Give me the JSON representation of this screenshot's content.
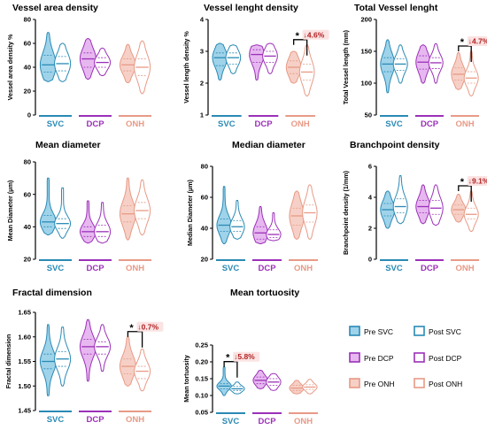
{
  "chart_data": [
    {
      "type": "violin",
      "title": "Vessel area density",
      "ylabel": "Vessel area density %",
      "ylim": [
        0,
        80
      ],
      "yticks": [
        "0",
        "20",
        "40",
        "60",
        "80"
      ],
      "groups": [
        "SVC",
        "DCP",
        "ONH"
      ],
      "series": [
        {
          "name": "Pre SVC",
          "group": "SVC",
          "min": 28,
          "q1": 36,
          "median": 42,
          "q3": 50,
          "max": 69
        },
        {
          "name": "Post SVC",
          "group": "SVC",
          "min": 28,
          "q1": 37,
          "median": 43,
          "q3": 49,
          "max": 60
        },
        {
          "name": "Pre DCP",
          "group": "DCP",
          "min": 30,
          "q1": 40,
          "median": 47,
          "q3": 52,
          "max": 64
        },
        {
          "name": "Post DCP",
          "group": "DCP",
          "min": 33,
          "q1": 40,
          "median": 44,
          "q3": 48,
          "max": 56
        },
        {
          "name": "Pre ONH",
          "group": "ONH",
          "min": 27,
          "q1": 37,
          "median": 42,
          "q3": 47,
          "max": 59
        },
        {
          "name": "Post ONH",
          "group": "ONH",
          "min": 18,
          "q1": 33,
          "median": 40,
          "q3": 47,
          "max": 62
        }
      ],
      "annotation": null
    },
    {
      "type": "violin",
      "title": "Vessel lenght density",
      "ylabel": "Vessel length density %",
      "ylim": [
        1,
        4
      ],
      "yticks": [
        "1",
        "2",
        "3",
        "4"
      ],
      "groups": [
        "SVC",
        "DCP",
        "ONH"
      ],
      "series": [
        {
          "name": "Pre SVC",
          "group": "SVC",
          "min": 2.1,
          "q1": 2.55,
          "median": 2.8,
          "q3": 2.95,
          "max": 3.25
        },
        {
          "name": "Post SVC",
          "group": "SVC",
          "min": 2.3,
          "q1": 2.6,
          "median": 2.8,
          "q3": 2.95,
          "max": 3.2
        },
        {
          "name": "Pre DCP",
          "group": "DCP",
          "min": 2.1,
          "q1": 2.65,
          "median": 2.9,
          "q3": 3.05,
          "max": 3.2
        },
        {
          "name": "Post DCP",
          "group": "DCP",
          "min": 2.3,
          "q1": 2.65,
          "median": 2.85,
          "q3": 3.0,
          "max": 3.25
        },
        {
          "name": "Pre ONH",
          "group": "ONH",
          "min": 2.0,
          "q1": 2.3,
          "median": 2.5,
          "q3": 2.7,
          "max": 3.0
        },
        {
          "name": "Post ONH",
          "group": "ONH",
          "min": 1.6,
          "q1": 2.1,
          "median": 2.35,
          "q3": 2.6,
          "max": 3.2
        }
      ],
      "annotation": {
        "star": "*",
        "text": "↓4.6%",
        "pair": "ONH"
      }
    },
    {
      "type": "violin",
      "title": "Total Vessel lenght",
      "ylabel": "Total Vessel length (mm)",
      "ylim": [
        50,
        200
      ],
      "yticks": [
        "50",
        "100",
        "150",
        "200"
      ],
      "groups": [
        "SVC",
        "DCP",
        "ONH"
      ],
      "series": [
        {
          "name": "Pre SVC",
          "group": "SVC",
          "min": 85,
          "q1": 118,
          "median": 130,
          "q3": 140,
          "max": 168
        },
        {
          "name": "Post SVC",
          "group": "SVC",
          "min": 100,
          "q1": 120,
          "median": 130,
          "q3": 138,
          "max": 160
        },
        {
          "name": "Pre DCP",
          "group": "DCP",
          "min": 100,
          "q1": 122,
          "median": 133,
          "q3": 143,
          "max": 160
        },
        {
          "name": "Post DCP",
          "group": "DCP",
          "min": 100,
          "q1": 123,
          "median": 132,
          "q3": 140,
          "max": 162
        },
        {
          "name": "Pre ONH",
          "group": "ONH",
          "min": 90,
          "q1": 105,
          "median": 114,
          "q3": 124,
          "max": 148
        },
        {
          "name": "Post ONH",
          "group": "ONH",
          "min": 80,
          "q1": 100,
          "median": 108,
          "q3": 118,
          "max": 150
        }
      ],
      "annotation": {
        "star": "*",
        "text": "↓4.7%",
        "pair": "ONH"
      }
    },
    {
      "type": "violin",
      "title": "Mean diameter",
      "ylabel": "Mean Diameter (μm)",
      "ylim": [
        20,
        80
      ],
      "yticks": [
        "20",
        "40",
        "60",
        "80"
      ],
      "groups": [
        "SVC",
        "DCP",
        "ONH"
      ],
      "series": [
        {
          "name": "Pre SVC",
          "group": "SVC",
          "min": 35,
          "q1": 40,
          "median": 43,
          "q3": 47,
          "max": 70
        },
        {
          "name": "Post SVC",
          "group": "SVC",
          "min": 33,
          "q1": 39,
          "median": 42,
          "q3": 45,
          "max": 64
        },
        {
          "name": "Pre DCP",
          "group": "DCP",
          "min": 30,
          "q1": 34,
          "median": 37,
          "q3": 40,
          "max": 56
        },
        {
          "name": "Post DCP",
          "group": "DCP",
          "min": 30,
          "q1": 34,
          "median": 37,
          "q3": 41,
          "max": 55
        },
        {
          "name": "Pre ONH",
          "group": "ONH",
          "min": 32,
          "q1": 43,
          "median": 48,
          "q3": 53,
          "max": 70
        },
        {
          "name": "Post ONH",
          "group": "ONH",
          "min": 35,
          "q1": 45,
          "median": 50,
          "q3": 55,
          "max": 69
        }
      ],
      "annotation": null
    },
    {
      "type": "violin",
      "title": "Median diameter",
      "ylabel": "Median Diameter (μm)",
      "ylim": [
        20,
        80
      ],
      "yticks": [
        "20",
        "40",
        "60",
        "80"
      ],
      "groups": [
        "SVC",
        "DCP",
        "ONH"
      ],
      "series": [
        {
          "name": "Pre SVC",
          "group": "SVC",
          "min": 30,
          "q1": 38,
          "median": 42,
          "q3": 46,
          "max": 67
        },
        {
          "name": "Post SVC",
          "group": "SVC",
          "min": 33,
          "q1": 38,
          "median": 41,
          "q3": 45,
          "max": 58
        },
        {
          "name": "Pre DCP",
          "group": "DCP",
          "min": 30,
          "q1": 33,
          "median": 37,
          "q3": 41,
          "max": 54
        },
        {
          "name": "Post DCP",
          "group": "DCP",
          "min": 32,
          "q1": 34,
          "median": 36,
          "q3": 39,
          "max": 50
        },
        {
          "name": "Pre ONH",
          "group": "ONH",
          "min": 33,
          "q1": 42,
          "median": 48,
          "q3": 53,
          "max": 64
        },
        {
          "name": "Post ONH",
          "group": "ONH",
          "min": 33,
          "q1": 44,
          "median": 50,
          "q3": 55,
          "max": 68
        }
      ],
      "annotation": null
    },
    {
      "type": "violin",
      "title": "Branchpoint density",
      "ylabel": "Branchpoint density (1/mm)",
      "ylim": [
        0,
        6
      ],
      "yticks": [
        "0",
        "2",
        "4",
        "6"
      ],
      "groups": [
        "SVC",
        "DCP",
        "ONH"
      ],
      "series": [
        {
          "name": "Pre SVC",
          "group": "SVC",
          "min": 2.0,
          "q1": 2.8,
          "median": 3.2,
          "q3": 3.6,
          "max": 4.4
        },
        {
          "name": "Post SVC",
          "group": "SVC",
          "min": 2.3,
          "q1": 3.0,
          "median": 3.4,
          "q3": 3.9,
          "max": 5.4
        },
        {
          "name": "Pre DCP",
          "group": "DCP",
          "min": 2.3,
          "q1": 3.0,
          "median": 3.4,
          "q3": 3.8,
          "max": 4.8
        },
        {
          "name": "Post DCP",
          "group": "DCP",
          "min": 2.2,
          "q1": 2.9,
          "median": 3.3,
          "q3": 3.8,
          "max": 4.8
        },
        {
          "name": "Pre ONH",
          "group": "ONH",
          "min": 2.4,
          "q1": 2.9,
          "median": 3.2,
          "q3": 3.5,
          "max": 4.2
        },
        {
          "name": "Post ONH",
          "group": "ONH",
          "min": 1.8,
          "q1": 2.6,
          "median": 2.9,
          "q3": 3.3,
          "max": 4.4
        }
      ],
      "annotation": {
        "star": "*",
        "text": "↓9.1%",
        "pair": "ONH"
      }
    },
    {
      "type": "violin",
      "title": "Fractal dimension",
      "ylabel": "Fractal dimension",
      "ylim": [
        1.45,
        1.65
      ],
      "yticks": [
        "1.45",
        "1.50",
        "1.55",
        "1.60",
        "1.65"
      ],
      "groups": [
        "SVC",
        "DCP",
        "ONH"
      ],
      "series": [
        {
          "name": "Pre SVC",
          "group": "SVC",
          "min": 1.48,
          "q1": 1.535,
          "median": 1.55,
          "q3": 1.565,
          "max": 1.625
        },
        {
          "name": "Post SVC",
          "group": "SVC",
          "min": 1.5,
          "q1": 1.54,
          "median": 1.555,
          "q3": 1.57,
          "max": 1.62
        },
        {
          "name": "Pre DCP",
          "group": "DCP",
          "min": 1.51,
          "q1": 1.565,
          "median": 1.58,
          "q3": 1.595,
          "max": 1.635
        },
        {
          "name": "Post DCP",
          "group": "DCP",
          "min": 1.53,
          "q1": 1.565,
          "median": 1.58,
          "q3": 1.59,
          "max": 1.625
        },
        {
          "name": "Pre ONH",
          "group": "ONH",
          "min": 1.5,
          "q1": 1.525,
          "median": 1.54,
          "q3": 1.555,
          "max": 1.6
        },
        {
          "name": "Post ONH",
          "group": "ONH",
          "min": 1.49,
          "q1": 1.515,
          "median": 1.53,
          "q3": 1.54,
          "max": 1.575
        }
      ],
      "annotation": {
        "star": "*",
        "text": "↓0.7%",
        "pair": "ONH"
      }
    },
    {
      "type": "violin",
      "title": "Mean tortuosity",
      "ylabel": "Mean tortuosity",
      "ylim": [
        0.05,
        0.25
      ],
      "yticks": [
        "0.05",
        "0.10",
        "0.15",
        "0.20",
        "0.25"
      ],
      "groups": [
        "SVC",
        "DCP",
        "ONH"
      ],
      "series": [
        {
          "name": "Pre SVC",
          "group": "SVC",
          "min": 0.1,
          "q1": 0.12,
          "median": 0.128,
          "q3": 0.135,
          "max": 0.185
        },
        {
          "name": "Post SVC",
          "group": "SVC",
          "min": 0.105,
          "q1": 0.115,
          "median": 0.12,
          "q3": 0.127,
          "max": 0.14
        },
        {
          "name": "Pre DCP",
          "group": "DCP",
          "min": 0.12,
          "q1": 0.135,
          "median": 0.145,
          "q3": 0.155,
          "max": 0.175
        },
        {
          "name": "Post DCP",
          "group": "DCP",
          "min": 0.115,
          "q1": 0.13,
          "median": 0.14,
          "q3": 0.15,
          "max": 0.165
        },
        {
          "name": "Pre ONH",
          "group": "ONH",
          "min": 0.105,
          "q1": 0.115,
          "median": 0.122,
          "q3": 0.13,
          "max": 0.145
        },
        {
          "name": "Post ONH",
          "group": "ONH",
          "min": 0.105,
          "q1": 0.118,
          "median": 0.125,
          "q3": 0.132,
          "max": 0.148
        }
      ],
      "annotation": {
        "star": "*",
        "text": "↓5.8%",
        "pair": "SVC"
      }
    }
  ],
  "legend": [
    {
      "name": "Pre SVC",
      "color": "#2a8ab5",
      "fill": "#9fd3ea"
    },
    {
      "name": "Post SVC",
      "color": "#2a8ab5",
      "fill": "#ffffff"
    },
    {
      "name": "Pre DCP",
      "color": "#9b30b8",
      "fill": "#e7b8f0"
    },
    {
      "name": "Post DCP",
      "color": "#9b30b8",
      "fill": "#ffffff"
    },
    {
      "name": "Pre ONH",
      "color": "#e89a86",
      "fill": "#f6d0c6"
    },
    {
      "name": "Post ONH",
      "color": "#e89a86",
      "fill": "#ffffff"
    }
  ],
  "group_colors": {
    "SVC": "#2a8ab5",
    "DCP": "#9b30b8",
    "ONH": "#e89a86"
  },
  "annotation_bg": "#fbe3e3",
  "annotation_color": "#b22222"
}
